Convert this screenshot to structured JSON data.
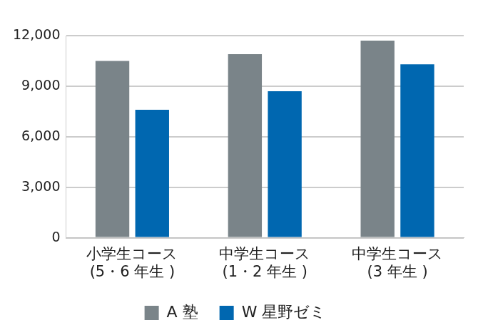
{
  "chart_data": {
    "type": "bar",
    "categories": [
      [
        "小学生コース",
        "(5・6 年生 )"
      ],
      [
        "中学生コース",
        "(1・2 年生 )"
      ],
      [
        "中学生コース",
        "(3 年生 )"
      ]
    ],
    "series": [
      {
        "name": "A 塾",
        "color": "#7a8489",
        "values": [
          10500,
          10900,
          11700
        ]
      },
      {
        "name": "W 星野ゼミ",
        "color": "#0067b0",
        "values": [
          7600,
          8700,
          10300
        ]
      }
    ],
    "ylim": [
      0,
      12000
    ],
    "yticks": [
      0,
      {
        "value": 3000,
        "label": "3,000"
      },
      {
        "value": 6000,
        "label": "6,000"
      },
      {
        "value": 9000,
        "label": "9,000"
      },
      {
        "value": 12000,
        "label": "12,000"
      }
    ],
    "grid": true,
    "legend": "bottom"
  }
}
